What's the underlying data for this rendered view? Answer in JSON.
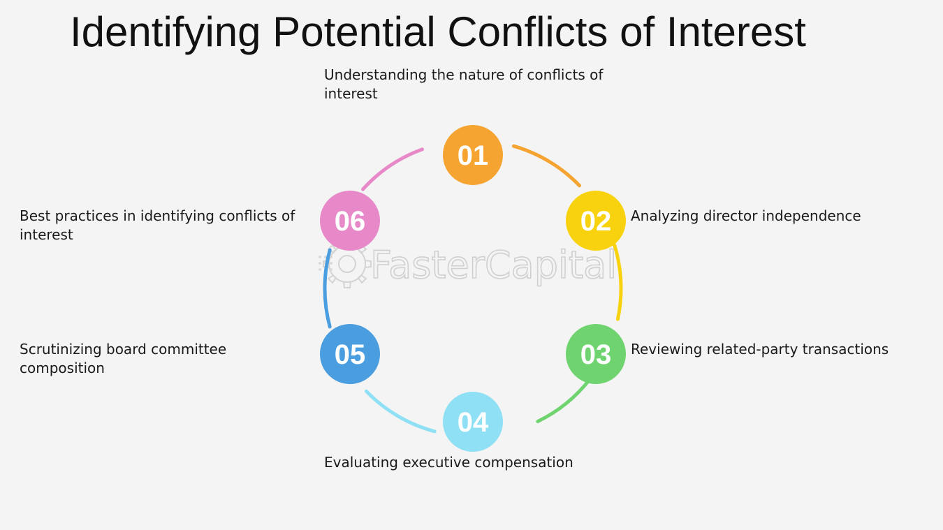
{
  "title": "Identifying Potential Conflicts of Interest",
  "steps": [
    {
      "number": "01",
      "label": "Understanding the nature of conflicts of interest",
      "color": "#f5a431"
    },
    {
      "number": "02",
      "label": "Analyzing director independence",
      "color": "#f8d20e"
    },
    {
      "number": "03",
      "label": "Reviewing related-party transactions",
      "color": "#6fd46f"
    },
    {
      "number": "04",
      "label": "Evaluating executive compensation",
      "color": "#8fe0f5"
    },
    {
      "number": "05",
      "label": "Scrutinizing board committee composition",
      "color": "#4a9ee0"
    },
    {
      "number": "06",
      "label": "Best practices in identifying conflicts of interest",
      "color": "#e789c9"
    }
  ],
  "connector_colors": [
    "#f5a431",
    "#f8d20e",
    "#6fd46f",
    "#8fe0f5",
    "#4a9ee0",
    "#e789c9"
  ],
  "watermark": "FasterCapital"
}
